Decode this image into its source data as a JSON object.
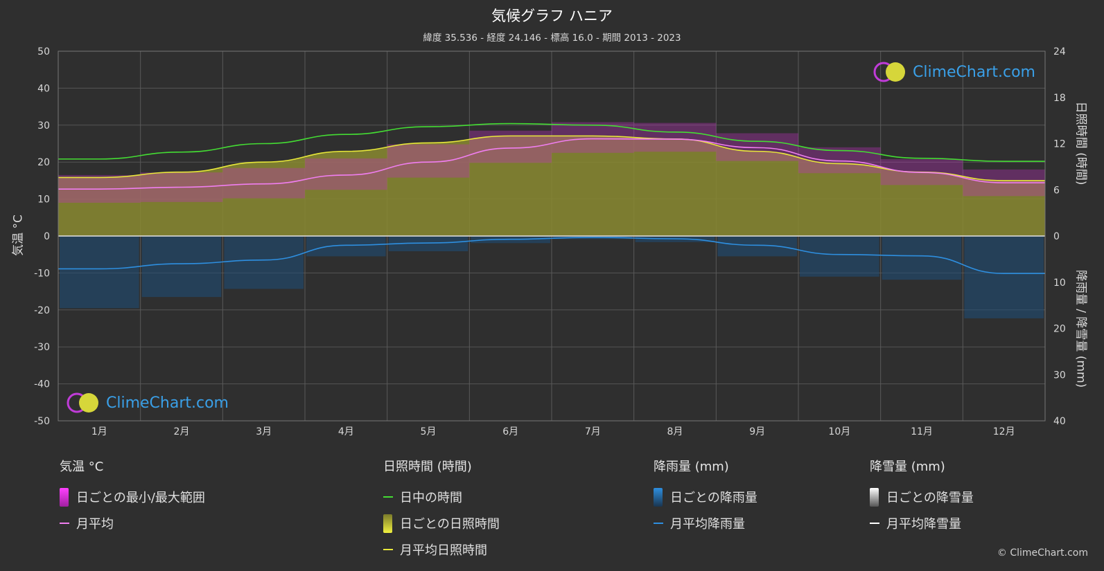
{
  "header": {
    "title": "気候グラフ ハニア",
    "subtitle": "緯度 35.536 - 経度 24.146 - 標高 16.0 - 期間 2013 - 2023"
  },
  "axes": {
    "left_title": "気温 °C",
    "right_top_title": "日照時間 (時間)",
    "right_bottom_title": "降雨量 / 降雪量 (mm)"
  },
  "logo": {
    "text": "ClimeChart.com"
  },
  "copyright": "© ClimeChart.com",
  "legend": {
    "temperature": {
      "title": "気温 °C",
      "items": [
        "日ごとの最小/最大範囲",
        "月平均"
      ]
    },
    "sunshine": {
      "title": "日照時間 (時間)",
      "items": [
        "日中の時間",
        "日ごとの日照時間",
        "月平均日照時間"
      ]
    },
    "rain": {
      "title": "降雨量 (mm)",
      "items": [
        "日ごとの降雨量",
        "月平均降雨量"
      ]
    },
    "snow": {
      "title": "降雪量 (mm)",
      "items": [
        "日ごとの降雪量",
        "月平均降雪量"
      ]
    }
  },
  "colors": {
    "background": "#2f2f2f",
    "daylight": "#44dd33",
    "sunshine_fill": "#8a8a30",
    "sunshine_line": "#e8e83a",
    "temp_range": "#c030c0",
    "temp_avg": "#f07ef0",
    "rain_fill": "#1e4f7a",
    "rain_line": "#2e8fe0",
    "snow_line": "#ffffff"
  },
  "chart_data": {
    "type": "line",
    "categories": [
      "1月",
      "2月",
      "3月",
      "4月",
      "5月",
      "6月",
      "7月",
      "8月",
      "9月",
      "10月",
      "11月",
      "12月"
    ],
    "y_left": {
      "range": [
        -50,
        50
      ],
      "ticks": [
        50,
        40,
        30,
        20,
        10,
        0,
        -10,
        -20,
        -30,
        -40,
        -50
      ]
    },
    "y_right_sun": {
      "range": [
        0,
        24
      ],
      "ticks": [
        24,
        18,
        12,
        6,
        0
      ]
    },
    "y_right_precip": {
      "range": [
        0,
        40
      ],
      "ticks": [
        0,
        10,
        20,
        30,
        40
      ]
    },
    "series": [
      {
        "name": "日中の時間",
        "unit": "時間",
        "values": [
          10.0,
          10.9,
          12.0,
          13.2,
          14.2,
          14.6,
          14.4,
          13.5,
          12.3,
          11.1,
          10.1,
          9.7
        ]
      },
      {
        "name": "月平均日照時間",
        "unit": "時間",
        "values": [
          7.6,
          8.3,
          9.6,
          11.0,
          12.1,
          13.0,
          13.0,
          12.6,
          11.0,
          9.4,
          8.3,
          7.2
        ]
      },
      {
        "name": "月平均",
        "unit": "°C",
        "values": [
          12.7,
          13.2,
          14.1,
          16.5,
          20.0,
          23.8,
          26.3,
          26.2,
          23.9,
          20.3,
          17.2,
          14.4
        ]
      },
      {
        "name": "月平均降雨量",
        "unit": "mm",
        "values": [
          7.1,
          6.0,
          5.2,
          2.0,
          1.5,
          0.7,
          0.3,
          0.6,
          2.0,
          4.0,
          4.3,
          8.1
        ]
      },
      {
        "name": "月平均降雪量",
        "unit": "mm",
        "values": [
          0,
          0,
          0,
          0,
          0,
          0,
          0,
          0,
          0,
          0,
          0,
          0
        ]
      }
    ],
    "temp_range": {
      "name": "日ごとの最小/最大範囲",
      "min": [
        9.0,
        9.2,
        10.2,
        12.5,
        15.8,
        19.8,
        22.5,
        22.8,
        20.3,
        17.0,
        13.8,
        10.8
      ],
      "max": [
        16.5,
        17.2,
        18.4,
        21.0,
        24.8,
        28.5,
        30.8,
        30.6,
        27.8,
        24.0,
        20.8,
        18.0
      ]
    },
    "grid": true
  }
}
